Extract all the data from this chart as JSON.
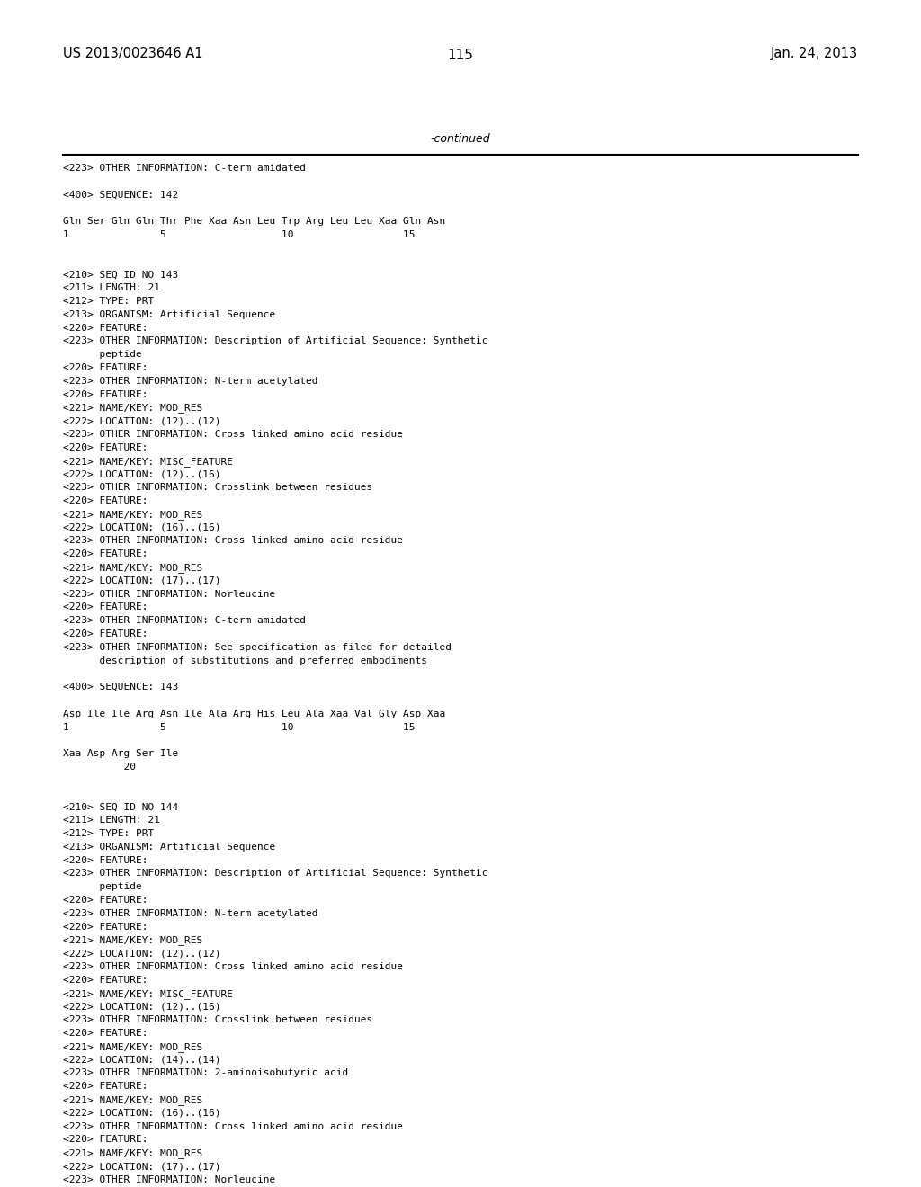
{
  "header_left": "US 2013/0023646 A1",
  "header_right": "Jan. 24, 2013",
  "page_number": "115",
  "continued_text": "-continued",
  "background_color": "#ffffff",
  "text_color": "#000000",
  "font_size": 8.0,
  "header_font_size": 10.5,
  "page_num_font_size": 11,
  "lines": [
    "<223> OTHER INFORMATION: C-term amidated",
    "",
    "<400> SEQUENCE: 142",
    "",
    "Gln Ser Gln Gln Thr Phe Xaa Asn Leu Trp Arg Leu Leu Xaa Gln Asn",
    "1               5                   10                  15",
    "",
    "",
    "<210> SEQ ID NO 143",
    "<211> LENGTH: 21",
    "<212> TYPE: PRT",
    "<213> ORGANISM: Artificial Sequence",
    "<220> FEATURE:",
    "<223> OTHER INFORMATION: Description of Artificial Sequence: Synthetic",
    "      peptide",
    "<220> FEATURE:",
    "<223> OTHER INFORMATION: N-term acetylated",
    "<220> FEATURE:",
    "<221> NAME/KEY: MOD_RES",
    "<222> LOCATION: (12)..(12)",
    "<223> OTHER INFORMATION: Cross linked amino acid residue",
    "<220> FEATURE:",
    "<221> NAME/KEY: MISC_FEATURE",
    "<222> LOCATION: (12)..(16)",
    "<223> OTHER INFORMATION: Crosslink between residues",
    "<220> FEATURE:",
    "<221> NAME/KEY: MOD_RES",
    "<222> LOCATION: (16)..(16)",
    "<223> OTHER INFORMATION: Cross linked amino acid residue",
    "<220> FEATURE:",
    "<221> NAME/KEY: MOD_RES",
    "<222> LOCATION: (17)..(17)",
    "<223> OTHER INFORMATION: Norleucine",
    "<220> FEATURE:",
    "<223> OTHER INFORMATION: C-term amidated",
    "<220> FEATURE:",
    "<223> OTHER INFORMATION: See specification as filed for detailed",
    "      description of substitutions and preferred embodiments",
    "",
    "<400> SEQUENCE: 143",
    "",
    "Asp Ile Ile Arg Asn Ile Ala Arg His Leu Ala Xaa Val Gly Asp Xaa",
    "1               5                   10                  15",
    "",
    "Xaa Asp Arg Ser Ile",
    "          20",
    "",
    "",
    "<210> SEQ ID NO 144",
    "<211> LENGTH: 21",
    "<212> TYPE: PRT",
    "<213> ORGANISM: Artificial Sequence",
    "<220> FEATURE:",
    "<223> OTHER INFORMATION: Description of Artificial Sequence: Synthetic",
    "      peptide",
    "<220> FEATURE:",
    "<223> OTHER INFORMATION: N-term acetylated",
    "<220> FEATURE:",
    "<221> NAME/KEY: MOD_RES",
    "<222> LOCATION: (12)..(12)",
    "<223> OTHER INFORMATION: Cross linked amino acid residue",
    "<220> FEATURE:",
    "<221> NAME/KEY: MISC_FEATURE",
    "<222> LOCATION: (12)..(16)",
    "<223> OTHER INFORMATION: Crosslink between residues",
    "<220> FEATURE:",
    "<221> NAME/KEY: MOD_RES",
    "<222> LOCATION: (14)..(14)",
    "<223> OTHER INFORMATION: 2-aminoisobutyric acid",
    "<220> FEATURE:",
    "<221> NAME/KEY: MOD_RES",
    "<222> LOCATION: (16)..(16)",
    "<223> OTHER INFORMATION: Cross linked amino acid residue",
    "<220> FEATURE:",
    "<221> NAME/KEY: MOD_RES",
    "<222> LOCATION: (17)..(17)",
    "<223> OTHER INFORMATION: Norleucine"
  ]
}
